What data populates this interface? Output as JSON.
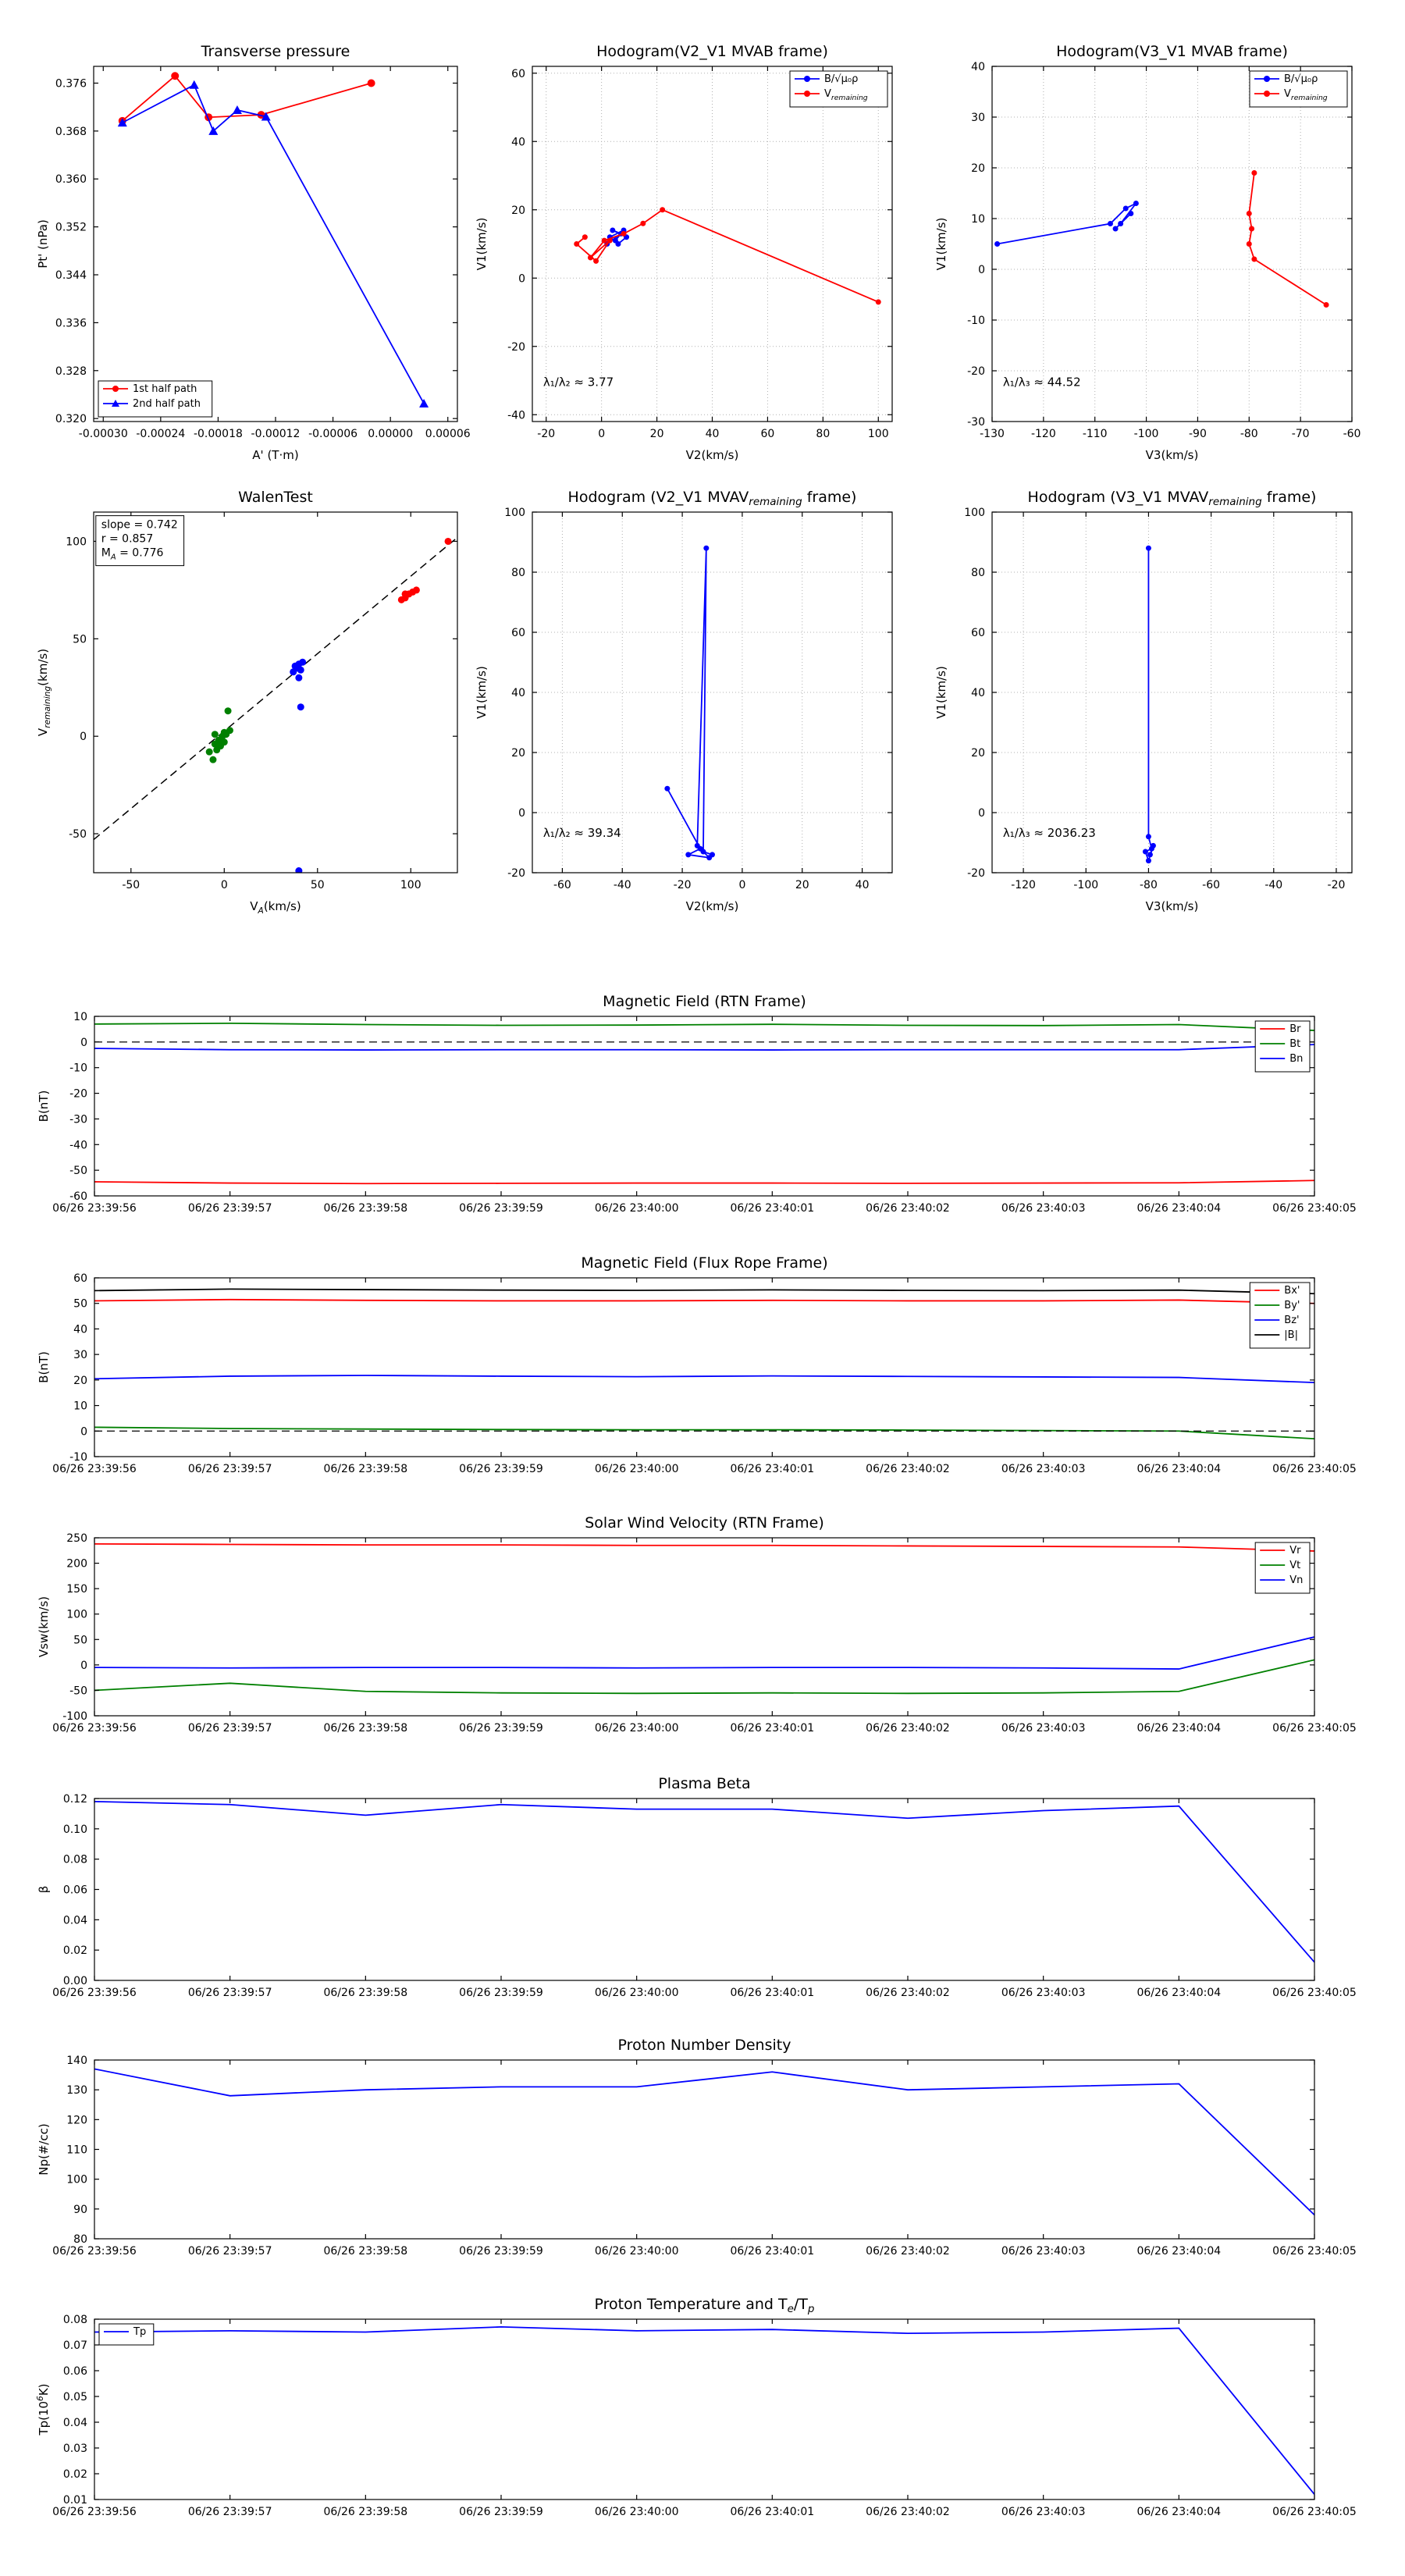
{
  "figure": {
    "background": "#ffffff"
  },
  "time_axis": {
    "labels": [
      "06/26 23:39:56",
      "06/26 23:39:57",
      "06/26 23:39:58",
      "06/26 23:39:59",
      "06/26 23:40:00",
      "06/26 23:40:01",
      "06/26 23:40:02",
      "06/26 23:40:03",
      "06/26 23:40:04",
      "06/26 23:40:05"
    ]
  },
  "chart_data": [
    {
      "id": "transverse-pressure",
      "type": "line",
      "title": "Transverse pressure",
      "xlabel": "A' (T·m)",
      "ylabel": "Pt' (nPa)",
      "xlim": [
        -0.00031,
        7e-05
      ],
      "ylim": [
        0.3195,
        0.3788
      ],
      "xticks": [
        -0.0003,
        -0.00024,
        -0.00018,
        -0.00012,
        -6e-05,
        0,
        6e-05
      ],
      "xtick_labels": [
        "-0.00030",
        "-0.00024",
        "-0.00018",
        "-0.00012",
        "-0.00006",
        "0.00000",
        "0.00006"
      ],
      "yticks": [
        0.32,
        0.328,
        0.336,
        0.344,
        0.352,
        0.36,
        0.368,
        0.376
      ],
      "ytick_labels": [
        "0.320",
        "0.328",
        "0.336",
        "0.344",
        "0.352",
        "0.360",
        "0.368",
        "0.376"
      ],
      "grid": false,
      "series": [
        {
          "name": "1st half path",
          "color": "#ff0000",
          "marker": "circle",
          "msize": 5,
          "x": [
            -0.00028,
            -0.000225,
            -0.00019,
            -0.000135,
            -2e-05
          ],
          "y": [
            0.3697,
            0.3772,
            0.3703,
            0.3707,
            0.376
          ]
        },
        {
          "name": "2nd half path",
          "color": "#0000ff",
          "marker": "triangle",
          "msize": 5,
          "x": [
            -0.00028,
            -0.000205,
            -0.000185,
            -0.00016,
            -0.00013,
            3.5e-05
          ],
          "y": [
            0.3694,
            0.3757,
            0.368,
            0.3715,
            0.3704,
            0.3225
          ]
        }
      ],
      "legend": "bottom-left"
    },
    {
      "id": "hodogram-v2v1-mvab",
      "type": "line",
      "title": "Hodogram(V2_V1 MVAB frame)",
      "xlabel": "V2(km/s)",
      "ylabel": "V1(km/s)",
      "xlim": [
        -25,
        105
      ],
      "ylim": [
        -42,
        62
      ],
      "xticks": [
        -20,
        0,
        20,
        40,
        60,
        80,
        100
      ],
      "yticks": [
        -40,
        -20,
        0,
        20,
        40,
        60
      ],
      "grid": true,
      "series": [
        {
          "name": "B/√μ₀ρ",
          "color": "#0000ff",
          "marker": "dot",
          "msize": 3.5,
          "x": [
            2,
            7,
            4,
            9,
            6,
            3,
            8,
            5
          ],
          "y": [
            10,
            13,
            14,
            12,
            10,
            12,
            14,
            11
          ]
        },
        {
          "name": "V_{remaining}",
          "color": "#ff0000",
          "marker": "dot",
          "msize": 3.5,
          "x": [
            -6,
            -9,
            -2,
            3,
            -4,
            1,
            8,
            15,
            22,
            100
          ],
          "y": [
            12,
            10,
            5,
            11,
            6,
            11,
            13,
            16,
            20,
            -7
          ]
        }
      ],
      "legend": "top-right",
      "annotations": [
        {
          "text": "λ₁/λ₂ ≈ 3.77",
          "fx": 0.03,
          "fy": 0.9
        }
      ]
    },
    {
      "id": "hodogram-v3v1-mvab",
      "type": "line",
      "title": "Hodogram(V3_V1 MVAB frame)",
      "xlabel": "V3(km/s)",
      "ylabel": "V1(km/s)",
      "xlim": [
        -130,
        -60
      ],
      "ylim": [
        -30,
        40
      ],
      "xticks": [
        -130,
        -120,
        -110,
        -100,
        -90,
        -80,
        -70,
        -60
      ],
      "yticks": [
        -30,
        -20,
        -10,
        0,
        10,
        20,
        30,
        40
      ],
      "grid": true,
      "series": [
        {
          "name": "B/√μ₀ρ",
          "color": "#0000ff",
          "marker": "dot",
          "msize": 3.5,
          "x": [
            -129,
            -107,
            -104,
            -102,
            -105,
            -103,
            -106
          ],
          "y": [
            5,
            9,
            12,
            13,
            9,
            11,
            8
          ]
        },
        {
          "name": "V_{remaining}",
          "color": "#ff0000",
          "marker": "dot",
          "msize": 3.5,
          "x": [
            -79,
            -80,
            -79.5,
            -80,
            -79,
            -65
          ],
          "y": [
            19,
            11,
            8,
            5,
            2,
            -7
          ]
        }
      ],
      "legend": "top-right",
      "annotations": [
        {
          "text": "λ₁/λ₃ ≈ 44.52",
          "fx": 0.03,
          "fy": 0.9
        }
      ]
    },
    {
      "id": "walen-test",
      "type": "scatter",
      "title": "WalenTest",
      "xlabel": "V_{A}(km/s)",
      "ylabel": "V_{remaining}(km/s)",
      "xlim": [
        -70,
        125
      ],
      "ylim": [
        -70,
        115
      ],
      "xticks": [
        -50,
        0,
        50,
        100
      ],
      "yticks": [
        -50,
        0,
        50,
        100
      ],
      "grid": false,
      "series": [
        {
          "color": "#000000",
          "dash": true,
          "width": 1.5,
          "x": [
            -70,
            125
          ],
          "y": [
            -53,
            102
          ]
        },
        {
          "color": "#008000",
          "line": false,
          "marker": "dot",
          "msize": 4.5,
          "x": [
            -8,
            -5,
            -4,
            -3,
            -2,
            -1,
            0,
            1,
            -5,
            2,
            -6,
            3,
            0
          ],
          "y": [
            -8,
            -4,
            -7,
            -2,
            -5,
            0,
            -3,
            1,
            1,
            13,
            -12,
            3,
            2
          ]
        },
        {
          "color": "#0000ff",
          "line": false,
          "marker": "dot",
          "msize": 4.5,
          "x": [
            37,
            39,
            40,
            41,
            42,
            38,
            40,
            41,
            40
          ],
          "y": [
            33,
            35,
            37,
            34,
            38,
            36,
            30,
            15,
            -69
          ]
        },
        {
          "color": "#ff0000",
          "line": false,
          "marker": "dot",
          "msize": 4.5,
          "x": [
            95,
            97,
            99,
            101,
            97,
            103,
            120
          ],
          "y": [
            70,
            71,
            73,
            74,
            73,
            75,
            100
          ]
        }
      ],
      "annotations": [
        {
          "box": true,
          "lines": [
            "slope = 0.742",
            "r = 0.857",
            "M_{A} = 0.776"
          ],
          "fx": 0.006,
          "fy": 0.01
        }
      ]
    },
    {
      "id": "hodogram-v2v1-mvav",
      "type": "line",
      "title": "Hodogram (V2_V1 MVAV_{remaining} frame)",
      "xlabel": "V2(km/s)",
      "ylabel": "V1(km/s)",
      "xlim": [
        -70,
        50
      ],
      "ylim": [
        -20,
        100
      ],
      "xticks": [
        -60,
        -40,
        -20,
        0,
        20,
        40
      ],
      "yticks": [
        -20,
        0,
        20,
        40,
        60,
        80,
        100
      ],
      "grid": true,
      "series": [
        {
          "color": "#0000ff",
          "marker": "dot",
          "msize": 3.5,
          "x": [
            -25,
            -14,
            -18,
            -11,
            -15,
            -12,
            -13,
            -10
          ],
          "y": [
            8,
            -12,
            -14,
            -15,
            -11,
            88,
            -13,
            -14
          ]
        }
      ],
      "annotations": [
        {
          "text": "λ₁/λ₂ ≈ 39.34",
          "fx": 0.03,
          "fy": 0.9
        }
      ]
    },
    {
      "id": "hodogram-v3v1-mvav",
      "type": "line",
      "title": "Hodogram (V3_V1 MVAV_{remaining} frame)",
      "xlabel": "V3(km/s)",
      "ylabel": "V1(km/s)",
      "xlim": [
        -130,
        -15
      ],
      "ylim": [
        -20,
        100
      ],
      "xticks": [
        -120,
        -100,
        -80,
        -60,
        -40,
        -20
      ],
      "yticks": [
        -20,
        0,
        20,
        40,
        60,
        80,
        100
      ],
      "grid": true,
      "series": [
        {
          "color": "#0000ff",
          "marker": "dot",
          "msize": 3.5,
          "x": [
            -80,
            -80,
            -79,
            -81,
            -80,
            -78.5,
            -79.5
          ],
          "y": [
            88,
            -8,
            -12,
            -13,
            -16,
            -11,
            -14
          ]
        }
      ],
      "annotations": [
        {
          "text": "λ₁/λ₃ ≈ 2036.23",
          "fx": 0.03,
          "fy": 0.9
        }
      ]
    },
    {
      "id": "mag-rtn",
      "type": "line",
      "title": "Magnetic Field (RTN Frame)",
      "xlabel": "",
      "ylabel": "B(nT)",
      "xlim": [
        0,
        9
      ],
      "ylim": [
        -60,
        10
      ],
      "xticks": [
        0,
        1,
        2,
        3,
        4,
        5,
        6,
        7,
        8,
        9
      ],
      "xtick_labels": "@time",
      "yticks": [
        -60,
        -50,
        -40,
        -30,
        -20,
        -10,
        0,
        10
      ],
      "grid": false,
      "series": [
        {
          "name": "Br",
          "color": "#ff0000",
          "y": [
            -54.5,
            -55,
            -55.2,
            -55.1,
            -55,
            -55,
            -55.1,
            -55,
            -54.9,
            -54
          ]
        },
        {
          "name": "Bt",
          "color": "#008000",
          "y": [
            7,
            7.3,
            6.8,
            6.5,
            6.6,
            6.9,
            6.5,
            6.4,
            6.8,
            4.5
          ]
        },
        {
          "name": "Bn",
          "color": "#0000ff",
          "y": [
            -2.5,
            -3,
            -3.1,
            -3,
            -3,
            -3.1,
            -3,
            -3,
            -3,
            -1
          ]
        },
        {
          "color": "#000000",
          "dash": true,
          "width": 1.3,
          "x": [
            0,
            9
          ],
          "y": [
            0,
            0
          ]
        }
      ],
      "legend": "top-right"
    },
    {
      "id": "mag-fluxrope",
      "type": "line",
      "title": "Magnetic Field (Flux Rope Frame)",
      "xlabel": "",
      "ylabel": "B(nT)",
      "xlim": [
        0,
        9
      ],
      "ylim": [
        -10,
        60
      ],
      "xticks": [
        0,
        1,
        2,
        3,
        4,
        5,
        6,
        7,
        8,
        9
      ],
      "xtick_labels": "@time",
      "yticks": [
        -10,
        0,
        10,
        20,
        30,
        40,
        50,
        60
      ],
      "grid": false,
      "series": [
        {
          "name": "Bx'",
          "color": "#ff0000",
          "y": [
            51,
            51.5,
            51.2,
            51,
            51,
            51.2,
            51,
            51,
            51.3,
            50
          ]
        },
        {
          "name": "By'",
          "color": "#008000",
          "y": [
            1.5,
            1,
            0.8,
            0.6,
            0.5,
            0.5,
            0.4,
            0.2,
            0,
            -3
          ]
        },
        {
          "name": "Bz'",
          "color": "#0000ff",
          "y": [
            20.5,
            21.5,
            21.8,
            21.5,
            21.3,
            21.6,
            21.4,
            21.2,
            21,
            19
          ]
        },
        {
          "name": "|B|",
          "color": "#000000",
          "y": [
            55,
            55.6,
            55.4,
            55.2,
            55.1,
            55.3,
            55.1,
            55,
            55.2,
            53.8
          ]
        },
        {
          "color": "#000000",
          "dash": true,
          "width": 1.3,
          "x": [
            0,
            9
          ],
          "y": [
            0,
            0
          ]
        }
      ],
      "legend": "top-right"
    },
    {
      "id": "velocity-rtn",
      "type": "line",
      "title": "Solar Wind Velocity (RTN Frame)",
      "xlabel": "",
      "ylabel": "Vsw(km/s)",
      "xlim": [
        0,
        9
      ],
      "ylim": [
        -100,
        250
      ],
      "xticks": [
        0,
        1,
        2,
        3,
        4,
        5,
        6,
        7,
        8,
        9
      ],
      "xtick_labels": "@time",
      "yticks": [
        -100,
        -50,
        0,
        50,
        100,
        150,
        200,
        250
      ],
      "grid": false,
      "series": [
        {
          "name": "Vr",
          "color": "#ff0000",
          "y": [
            238,
            237,
            236,
            236,
            235,
            235,
            234,
            233,
            232,
            224
          ]
        },
        {
          "name": "Vt",
          "color": "#008000",
          "y": [
            -50,
            -36,
            -52,
            -55,
            -56,
            -55,
            -56,
            -55,
            -52,
            10
          ]
        },
        {
          "name": "Vn",
          "color": "#0000ff",
          "y": [
            -5,
            -6,
            -5,
            -5,
            -6,
            -5,
            -5,
            -6,
            -8,
            55
          ]
        }
      ],
      "legend": "top-right"
    },
    {
      "id": "plasma-beta",
      "type": "line",
      "title": "Plasma Beta",
      "xlabel": "",
      "ylabel": "β",
      "xlim": [
        0,
        9
      ],
      "ylim": [
        0,
        0.12
      ],
      "xticks": [
        0,
        1,
        2,
        3,
        4,
        5,
        6,
        7,
        8,
        9
      ],
      "xtick_labels": "@time",
      "yticks": [
        0,
        0.02,
        0.04,
        0.06,
        0.08,
        0.1,
        0.12
      ],
      "ytick_labels": [
        "0.00",
        "0.02",
        "0.04",
        "0.06",
        "0.08",
        "0.10",
        "0.12"
      ],
      "grid": false,
      "series": [
        {
          "color": "#0000ff",
          "y": [
            0.118,
            0.116,
            0.109,
            0.116,
            0.113,
            0.113,
            0.107,
            0.112,
            0.115,
            0.012
          ]
        }
      ]
    },
    {
      "id": "proton-density",
      "type": "line",
      "title": "Proton Number Density",
      "xlabel": "",
      "ylabel": "Np(#/cc)",
      "xlim": [
        0,
        9
      ],
      "ylim": [
        80,
        140
      ],
      "xticks": [
        0,
        1,
        2,
        3,
        4,
        5,
        6,
        7,
        8,
        9
      ],
      "xtick_labels": "@time",
      "yticks": [
        80,
        90,
        100,
        110,
        120,
        130,
        140
      ],
      "grid": false,
      "series": [
        {
          "color": "#0000ff",
          "y": [
            137,
            128,
            130,
            131,
            131,
            136,
            130,
            131,
            132,
            88
          ]
        }
      ]
    },
    {
      "id": "proton-temp",
      "type": "line",
      "title": "Proton Temperature and T_{e}/T_{p}",
      "xlabel": "",
      "ylabel": "Tp(10^{6}K)",
      "xlim": [
        0,
        9
      ],
      "ylim": [
        0.01,
        0.08
      ],
      "xticks": [
        0,
        1,
        2,
        3,
        4,
        5,
        6,
        7,
        8,
        9
      ],
      "xtick_labels": "@time",
      "yticks": [
        0.01,
        0.02,
        0.03,
        0.04,
        0.05,
        0.06,
        0.07,
        0.08
      ],
      "ytick_labels": [
        "0.01",
        "0.02",
        "0.03",
        "0.04",
        "0.05",
        "0.06",
        "0.07",
        "0.08"
      ],
      "grid": false,
      "series": [
        {
          "name": "Tp",
          "color": "#0000ff",
          "y": [
            0.075,
            0.0755,
            0.075,
            0.077,
            0.0755,
            0.076,
            0.0745,
            0.075,
            0.0765,
            0.012
          ]
        }
      ],
      "legend": "top-left"
    }
  ]
}
